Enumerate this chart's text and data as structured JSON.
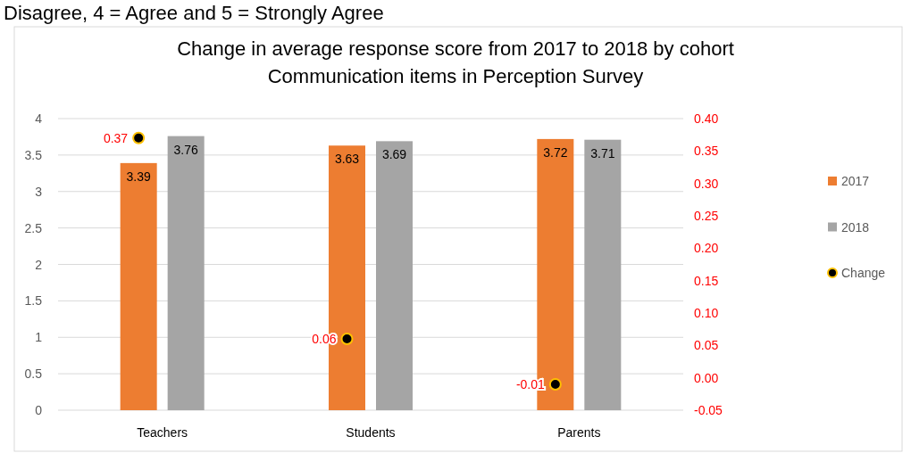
{
  "chart_data": {
    "type": "bar",
    "title": "Change in average response score from 2017 to 2018 by cohort",
    "subtitle": "Communication items in Perception Survey",
    "annotations": [
      "Disagree, 4 = Agree and 5 = Strongly Agree"
    ],
    "categories": [
      "Teachers",
      "Students",
      "Parents"
    ],
    "series": [
      {
        "name": "2017",
        "color": "#ed7d31",
        "values": [
          3.39,
          3.63,
          3.72
        ]
      },
      {
        "name": "2018",
        "color": "#a5a5a5",
        "values": [
          3.76,
          3.69,
          3.71
        ]
      },
      {
        "name": "Change",
        "type": "scatter",
        "axis": "y2",
        "color": "#000000",
        "values": [
          0.37,
          0.06,
          -0.01
        ]
      }
    ],
    "ylim": [
      0,
      4
    ],
    "yticks": [
      0,
      0.5,
      1,
      1.5,
      2,
      2.5,
      3,
      3.5,
      4
    ],
    "y2lim": [
      -0.05,
      0.4
    ],
    "y2ticks": [
      {
        "value": -0.05,
        "label": "-0.05"
      },
      {
        "value": 0,
        "label": "0.00"
      },
      {
        "value": 0.05,
        "label": "0.05"
      },
      {
        "value": 0.1,
        "label": "0.10"
      },
      {
        "value": 0.15,
        "label": "0.15"
      },
      {
        "value": 0.2,
        "label": "0.20"
      },
      {
        "value": 0.25,
        "label": "0.25"
      },
      {
        "value": 0.3,
        "label": "0.30"
      },
      {
        "value": 0.35,
        "label": "0.35"
      },
      {
        "value": 0.4,
        "label": "0.40"
      }
    ],
    "grid": "y",
    "legend": "right",
    "marker": "circle",
    "data_labels": true
  }
}
